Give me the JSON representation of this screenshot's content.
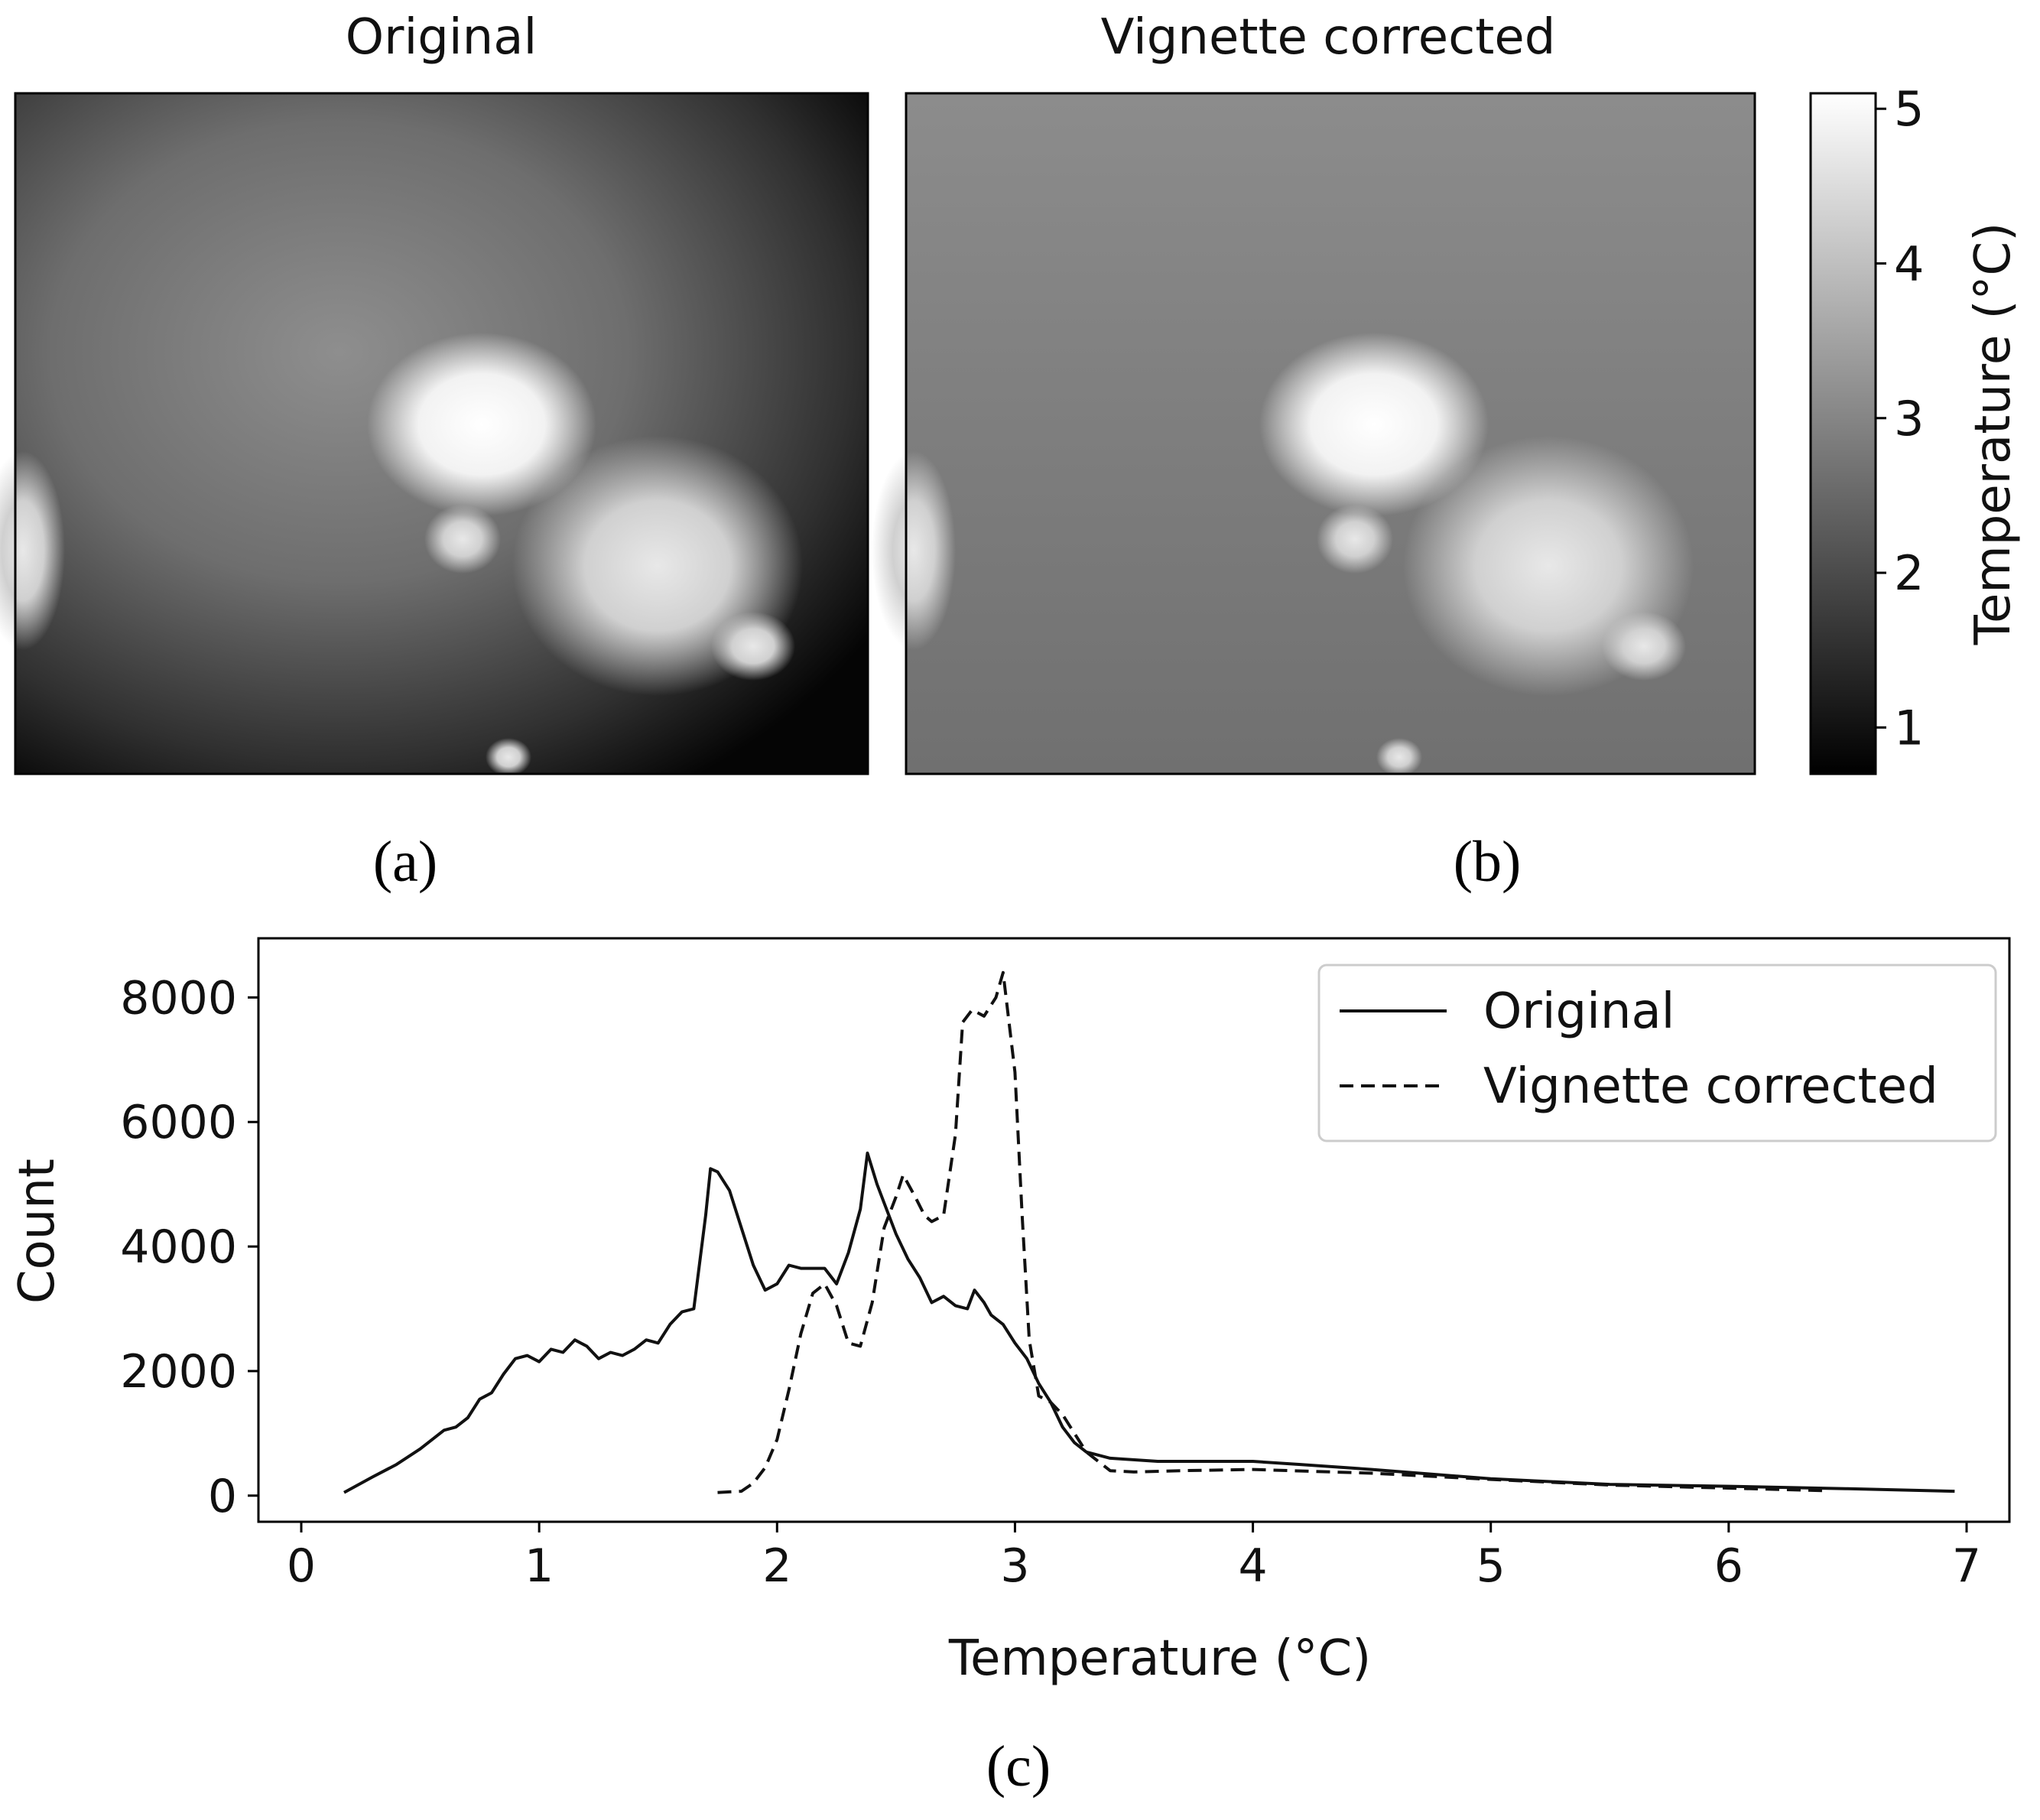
{
  "chart_data": [
    {
      "type": "image",
      "panel": "a",
      "title": "Original",
      "panel_label": "(a)",
      "description_colormap": "grayscale"
    },
    {
      "type": "image",
      "panel": "b",
      "title": "Vignette corrected",
      "panel_label": "(b)",
      "colorbar": {
        "label": "Temperature (°C)",
        "range": [
          0.7,
          5.1
        ],
        "ticks": [
          1,
          2,
          3,
          4,
          5
        ],
        "tick_labels": [
          "1",
          "2",
          "3",
          "4",
          "5"
        ]
      }
    },
    {
      "type": "line",
      "panel": "c",
      "panel_label": "(c)",
      "xlabel": "Temperature (°C)",
      "ylabel": "Count",
      "xlim": [
        -0.18,
        7.18
      ],
      "ylim": [
        -420,
        8950
      ],
      "xticks": [
        0,
        1,
        2,
        3,
        4,
        5,
        6,
        7
      ],
      "xtick_labels": [
        "0",
        "1",
        "2",
        "3",
        "4",
        "5",
        "6",
        "7"
      ],
      "yticks": [
        0,
        2000,
        4000,
        6000,
        8000
      ],
      "ytick_labels": [
        "0",
        "2000",
        "4000",
        "6000",
        "8000"
      ],
      "legend": "top-right",
      "series": [
        {
          "name": "Original",
          "style": "solid",
          "x": [
            0.18,
            0.3,
            0.4,
            0.5,
            0.6,
            0.65,
            0.7,
            0.75,
            0.8,
            0.85,
            0.9,
            0.95,
            1.0,
            1.05,
            1.1,
            1.15,
            1.2,
            1.25,
            1.3,
            1.35,
            1.4,
            1.45,
            1.5,
            1.55,
            1.6,
            1.65,
            1.7,
            1.72,
            1.75,
            1.8,
            1.85,
            1.9,
            1.95,
            2.0,
            2.05,
            2.1,
            2.15,
            2.2,
            2.25,
            2.3,
            2.35,
            2.38,
            2.42,
            2.45,
            2.5,
            2.55,
            2.6,
            2.65,
            2.7,
            2.75,
            2.8,
            2.83,
            2.87,
            2.9,
            2.95,
            3.0,
            3.05,
            3.1,
            3.15,
            3.2,
            3.25,
            3.3,
            3.4,
            3.6,
            3.8,
            4.0,
            4.2,
            4.5,
            5.0,
            5.5,
            6.0,
            6.5,
            6.95
          ],
          "values": [
            50,
            300,
            500,
            750,
            1050,
            1100,
            1250,
            1550,
            1650,
            1950,
            2200,
            2250,
            2150,
            2350,
            2300,
            2500,
            2400,
            2200,
            2300,
            2250,
            2350,
            2500,
            2450,
            2750,
            2950,
            3000,
            4500,
            5250,
            5200,
            4900,
            4300,
            3700,
            3300,
            3400,
            3700,
            3650,
            3650,
            3650,
            3400,
            3900,
            4600,
            5500,
            5000,
            4700,
            4200,
            3800,
            3500,
            3100,
            3200,
            3050,
            3000,
            3300,
            3100,
            2900,
            2750,
            2450,
            2200,
            1800,
            1500,
            1100,
            850,
            700,
            600,
            550,
            550,
            550,
            500,
            420,
            270,
            180,
            150,
            110,
            70
          ]
        },
        {
          "name": "Vignette corrected",
          "style": "dashed",
          "x": [
            1.75,
            1.85,
            1.9,
            1.95,
            2.0,
            2.05,
            2.1,
            2.15,
            2.2,
            2.25,
            2.3,
            2.35,
            2.4,
            2.45,
            2.5,
            2.53,
            2.58,
            2.62,
            2.65,
            2.7,
            2.75,
            2.78,
            2.82,
            2.87,
            2.92,
            2.95,
            3.0,
            3.03,
            3.06,
            3.1,
            3.15,
            3.2,
            3.25,
            3.3,
            3.35,
            3.4,
            3.5,
            3.7,
            4.0,
            4.5,
            5.0,
            5.5,
            6.0,
            6.4
          ],
          "values": [
            50,
            70,
            200,
            450,
            900,
            1700,
            2600,
            3250,
            3400,
            3050,
            2450,
            2400,
            3100,
            4300,
            4800,
            5150,
            4800,
            4500,
            4400,
            4500,
            5800,
            7600,
            7800,
            7700,
            8000,
            8400,
            6800,
            4500,
            2500,
            1600,
            1500,
            1300,
            1000,
            700,
            550,
            400,
            380,
            400,
            420,
            360,
            260,
            170,
            120,
            80
          ]
        }
      ]
    }
  ]
}
